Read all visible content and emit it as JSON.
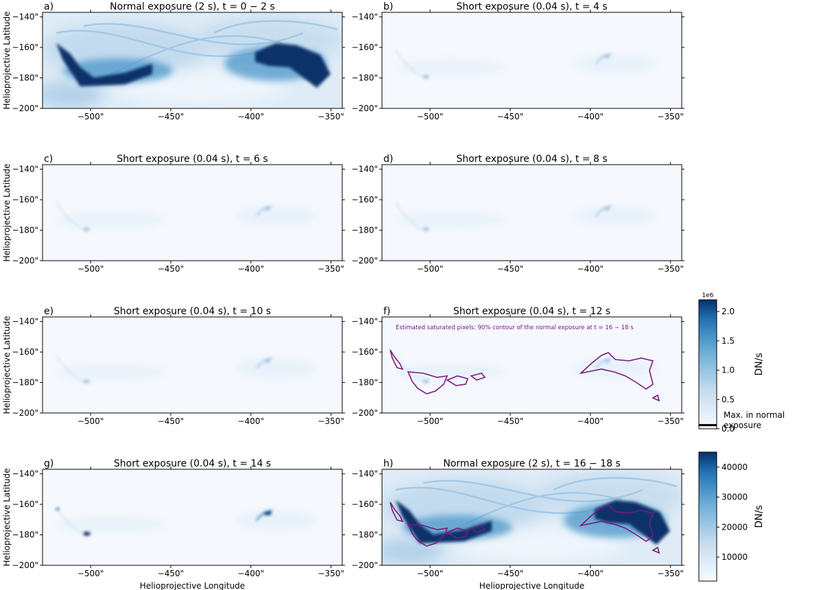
{
  "chart_data": [
    {
      "type": "heatmap",
      "panel": "a)",
      "title": "Normal exposure (2 s), t = 0 − 2 s",
      "ylabel": "Helioprojective Latitude",
      "xlabel": "",
      "xticks": [
        "−500\"",
        "−450\"",
        "−400\"",
        "−350\""
      ],
      "yticks": [
        "−140\"",
        "−160\"",
        "−180\"",
        "−200\""
      ],
      "xlim": [
        -530,
        -343
      ],
      "ylim": [
        -200,
        -137
      ],
      "colorbar": "normal",
      "intensity": "high"
    },
    {
      "type": "heatmap",
      "panel": "b)",
      "title": "Short exposure (0.04 s), t = 4 s",
      "ylabel": "",
      "xlabel": "",
      "xticks": [
        "−500\"",
        "−450\"",
        "−400\"",
        "−350\""
      ],
      "yticks": [
        "−140\"",
        "−160\"",
        "−180\"",
        "−200\""
      ],
      "xlim": [
        -530,
        -343
      ],
      "ylim": [
        -200,
        -137
      ],
      "colorbar": "short",
      "intensity": "low"
    },
    {
      "type": "heatmap",
      "panel": "c)",
      "title": "Short exposure (0.04 s), t = 6 s",
      "ylabel": "Helioprojective Latitude",
      "xlabel": "",
      "xticks": [
        "−500\"",
        "−450\"",
        "−400\"",
        "−350\""
      ],
      "yticks": [
        "−140\"",
        "−160\"",
        "−180\"",
        "−200\""
      ],
      "xlim": [
        -530,
        -343
      ],
      "ylim": [
        -200,
        -137
      ],
      "colorbar": "short",
      "intensity": "low"
    },
    {
      "type": "heatmap",
      "panel": "d)",
      "title": "Short exposure (0.04 s), t = 8 s",
      "ylabel": "",
      "xlabel": "",
      "xticks": [
        "−500\"",
        "−450\"",
        "−400\"",
        "−350\""
      ],
      "yticks": [
        "−140\"",
        "−160\"",
        "−180\"",
        "−200\""
      ],
      "xlim": [
        -530,
        -343
      ],
      "ylim": [
        -200,
        -137
      ],
      "colorbar": "short",
      "intensity": "low"
    },
    {
      "type": "heatmap",
      "panel": "e)",
      "title": "Short exposure (0.04 s), t = 10 s",
      "ylabel": "Helioprojective Latitude",
      "xlabel": "",
      "xticks": [
        "−500\"",
        "−450\"",
        "−400\"",
        "−350\""
      ],
      "yticks": [
        "−140\"",
        "−160\"",
        "−180\"",
        "−200\""
      ],
      "xlim": [
        -530,
        -343
      ],
      "ylim": [
        -200,
        -137
      ],
      "colorbar": "short",
      "intensity": "low"
    },
    {
      "type": "heatmap",
      "panel": "f)",
      "title": "Short exposure (0.04 s), t = 12 s",
      "ylabel": "",
      "xlabel": "",
      "annotation": "Estimated saturated pixels: 90% contour of the normal exposure at t = 16 − 18 s",
      "xticks": [
        "−500\"",
        "−450\"",
        "−400\"",
        "−350\""
      ],
      "yticks": [
        "−140\"",
        "−160\"",
        "−180\"",
        "−200\""
      ],
      "xlim": [
        -530,
        -343
      ],
      "ylim": [
        -200,
        -137
      ],
      "colorbar": "short",
      "intensity": "low",
      "contour": true
    },
    {
      "type": "heatmap",
      "panel": "g)",
      "title": "Short exposure (0.04 s), t = 14 s",
      "ylabel": "Helioprojective Latitude",
      "xlabel": "Helioprojective Longitude",
      "xticks": [
        "−500\"",
        "−450\"",
        "−400\"",
        "−350\""
      ],
      "yticks": [
        "−140\"",
        "−160\"",
        "−180\"",
        "−200\""
      ],
      "xlim": [
        -530,
        -343
      ],
      "ylim": [
        -200,
        -137
      ],
      "colorbar": "short",
      "intensity": "low"
    },
    {
      "type": "heatmap",
      "panel": "h)",
      "title": "Normal exposure (2 s), t = 16 − 18 s",
      "ylabel": "",
      "xlabel": "Helioprojective Longitude",
      "xticks": [
        "−500\"",
        "−450\"",
        "−400\"",
        "−350\""
      ],
      "yticks": [
        "−140\"",
        "−160\"",
        "−180\"",
        "−200\""
      ],
      "xlim": [
        -530,
        -343
      ],
      "ylim": [
        -200,
        -137
      ],
      "colorbar": "normal",
      "intensity": "high",
      "contour": true
    }
  ],
  "colorbars": {
    "short": {
      "label": "DN/s",
      "exponent": "1e6",
      "range": [
        0,
        2.2
      ],
      "ticks": [
        "0.0",
        "0.5",
        "1.0",
        "1.5",
        "2.0"
      ],
      "tick_values": [
        0.0,
        0.5,
        1.0,
        1.5,
        2.0
      ],
      "marker_value": 0.045,
      "marker_label": "Max. in normal exposure"
    },
    "normal": {
      "label": "DN/s",
      "range": [
        2000,
        45000
      ],
      "ticks": [
        "10000",
        "20000",
        "30000",
        "40000"
      ],
      "tick_values": [
        10000,
        20000,
        30000,
        40000
      ]
    }
  },
  "colors": {
    "dark": "#08306b",
    "mid": "#4292c6",
    "light": "#deebf7",
    "contour": "#7b1a7b"
  }
}
